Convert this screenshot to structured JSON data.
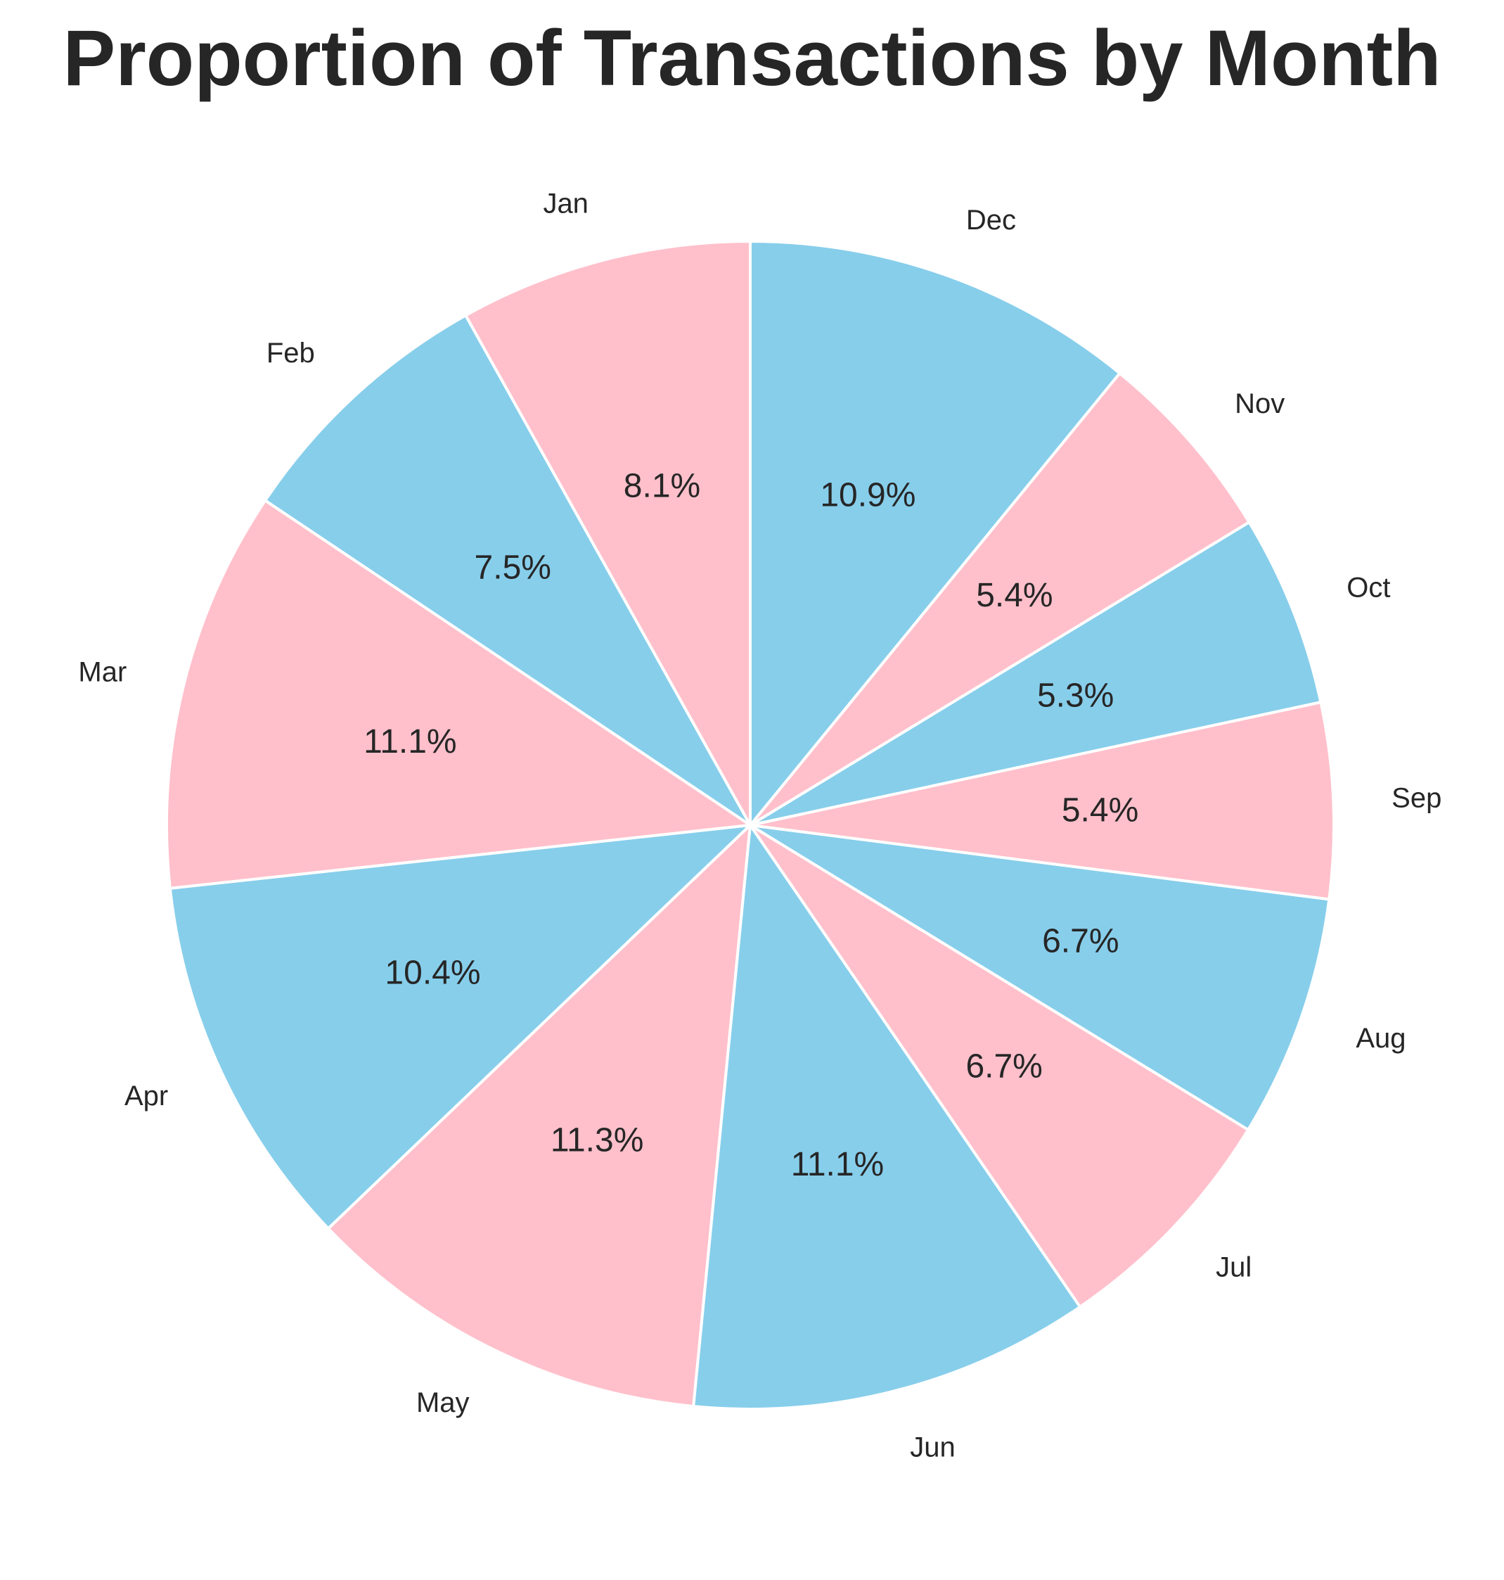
{
  "chart_data": {
    "type": "pie",
    "title": "Proportion of Transactions by Month",
    "categories": [
      "Jan",
      "Feb",
      "Mar",
      "Apr",
      "May",
      "Jun",
      "Jul",
      "Aug",
      "Sep",
      "Oct",
      "Nov",
      "Dec"
    ],
    "values": [
      8.1,
      7.5,
      11.1,
      10.4,
      11.3,
      11.1,
      6.7,
      6.7,
      5.4,
      5.3,
      5.4,
      10.9
    ],
    "percent_labels": [
      "8.1%",
      "7.5%",
      "11.1%",
      "10.4%",
      "11.3%",
      "11.1%",
      "6.7%",
      "6.7%",
      "5.4%",
      "5.3%",
      "5.4%",
      "10.9%"
    ],
    "colors": [
      "#FFC0CB",
      "#87CEEB"
    ],
    "slice_edge_color": "#ffffff",
    "start_angle_deg": 90,
    "direction": "counterclockwise",
    "legend": "none"
  }
}
